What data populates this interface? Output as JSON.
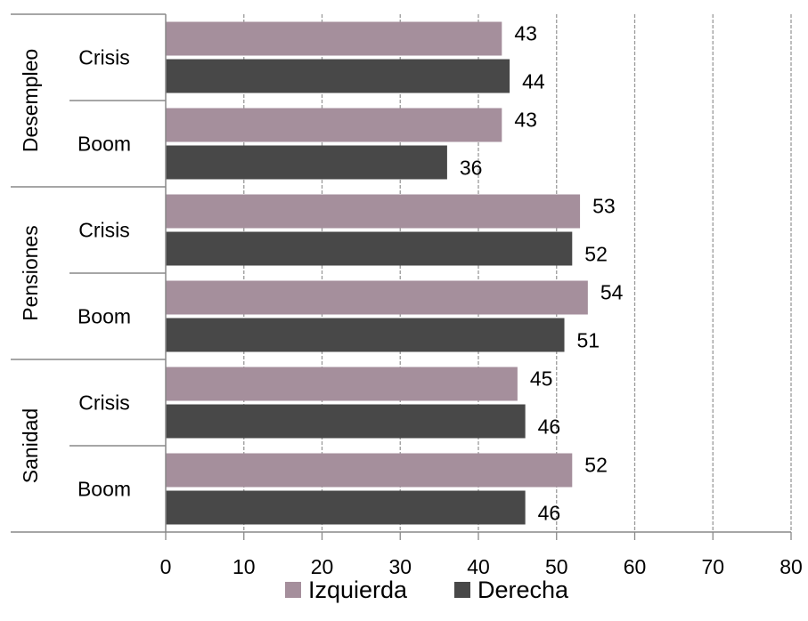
{
  "colors": {
    "izquierda": "#a58f9c",
    "derecha": "#484848",
    "grid": "#9a9a9a",
    "axis": "#888888"
  },
  "chart_data": {
    "type": "bar",
    "orientation": "horizontal",
    "groups": [
      {
        "name": "Desempleo",
        "categories": [
          "Crisis",
          "Boom"
        ]
      },
      {
        "name": "Pensiones",
        "categories": [
          "Crisis",
          "Boom"
        ]
      },
      {
        "name": "Sanidad",
        "categories": [
          "Crisis",
          "Boom"
        ]
      }
    ],
    "categories": [
      "Desempleo - Crisis",
      "Desempleo - Boom",
      "Pensiones - Crisis",
      "Pensiones - Boom",
      "Sanidad - Crisis",
      "Sanidad - Boom"
    ],
    "series": [
      {
        "name": "Izquierda",
        "color": "#a58f9c",
        "values": [
          43,
          43,
          53,
          54,
          45,
          52
        ]
      },
      {
        "name": "Derecha",
        "color": "#484848",
        "values": [
          44,
          36,
          52,
          51,
          46,
          46
        ]
      }
    ],
    "xlim": [
      0,
      80
    ],
    "xticks": [
      "0",
      "10",
      "20",
      "30",
      "40",
      "50",
      "60",
      "70",
      "80"
    ],
    "grid": "vertical-dashed",
    "legend": "bottom",
    "title": "",
    "xlabel": "",
    "ylabel": ""
  }
}
